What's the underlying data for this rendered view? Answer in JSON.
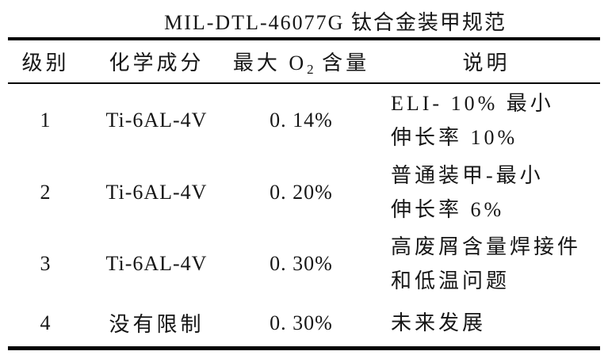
{
  "title": "MIL-DTL-46077G 钛合金装甲规范",
  "table": {
    "headers": {
      "grade": "级别",
      "composition": "化学成分",
      "max_o2_prefix": "最大 O",
      "max_o2_sub": "2",
      "max_o2_suffix": " 含量",
      "description": "说明"
    },
    "rows": [
      {
        "grade": "1",
        "composition": "Ti-6AL-4V",
        "max_o2": "0. 14%",
        "desc_line1": "ELI- 10% 最小",
        "desc_line2": "伸长率 10%"
      },
      {
        "grade": "2",
        "composition": "Ti-6AL-4V",
        "max_o2": "0. 20%",
        "desc_line1": "普通装甲-最小",
        "desc_line2": "伸长率 6%"
      },
      {
        "grade": "3",
        "composition": "Ti-6AL-4V",
        "max_o2": "0. 30%",
        "desc_line1": "高废屑含量焊接件",
        "desc_line2": "和低温问题"
      },
      {
        "grade": "4",
        "composition": "没有限制",
        "max_o2": "0. 30%",
        "desc_line1": "未来发展"
      }
    ]
  },
  "colors": {
    "background": "#ffffff",
    "text": "#161616",
    "rule": "#000000"
  }
}
